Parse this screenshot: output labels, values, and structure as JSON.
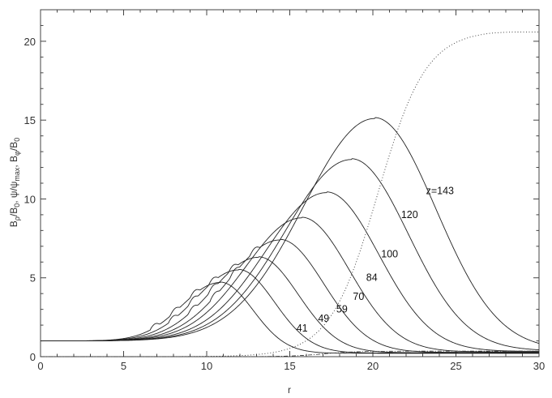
{
  "chart_data": {
    "type": "line",
    "xlabel": "r",
    "ylabel": "Bρ/B0, ψ/ψmax, Bφ/B0",
    "ylabel_parts": {
      "b1": "B",
      "b1_sub": "ρ",
      "slash1": "/B",
      "b1_den_sub": "0",
      "sep1": ", ψ/ψ",
      "psi_sub": "max",
      "sep2": ", B",
      "b2_sub": "φ",
      "slash2": "/B",
      "b2_den_sub": "0"
    },
    "xlim": [
      0,
      30
    ],
    "ylim": [
      0,
      22
    ],
    "xticks": [
      0,
      5,
      10,
      15,
      20,
      25,
      30
    ],
    "yticks": [
      0,
      5,
      10,
      15,
      20
    ],
    "grid": false,
    "series": [
      {
        "name": "41",
        "z": 41,
        "peak_r": 10.8,
        "peak_B": 4.7,
        "label_pos": [
          15.4,
          1.6
        ],
        "style": "solid",
        "ripple": true
      },
      {
        "name": "49",
        "z": 49,
        "peak_r": 11.9,
        "peak_B": 5.5,
        "label_pos": [
          16.7,
          2.2
        ],
        "style": "solid",
        "ripple": true
      },
      {
        "name": "59",
        "z": 59,
        "peak_r": 13.1,
        "peak_B": 6.3,
        "label_pos": [
          17.8,
          2.8
        ],
        "style": "solid",
        "ripple": true
      },
      {
        "name": "70",
        "z": 70,
        "peak_r": 14.4,
        "peak_B": 7.4,
        "label_pos": [
          18.8,
          3.6
        ],
        "style": "solid",
        "ripple": true
      },
      {
        "name": "84",
        "z": 84,
        "peak_r": 15.7,
        "peak_B": 8.8,
        "label_pos": [
          19.6,
          4.8
        ],
        "style": "solid",
        "ripple": false
      },
      {
        "name": "100",
        "z": 100,
        "peak_r": 17.2,
        "peak_B": 10.4,
        "label_pos": [
          20.5,
          6.3
        ],
        "style": "solid",
        "ripple": false
      },
      {
        "name": "120",
        "z": 120,
        "peak_r": 18.7,
        "peak_B": 12.5,
        "label_pos": [
          21.7,
          8.8
        ],
        "style": "solid",
        "ripple": false
      },
      {
        "name": "z=143",
        "z": 143,
        "peak_r": 20.1,
        "peak_B": 15.1,
        "label_pos": [
          23.2,
          10.3
        ],
        "style": "solid",
        "ripple": false
      }
    ],
    "psi_curve": {
      "style": "dotted",
      "max": 20.7,
      "center_r": 20.3,
      "width": 1.45
    },
    "bphi_curve": {
      "style": "dash-dot",
      "level": 0.35
    }
  }
}
